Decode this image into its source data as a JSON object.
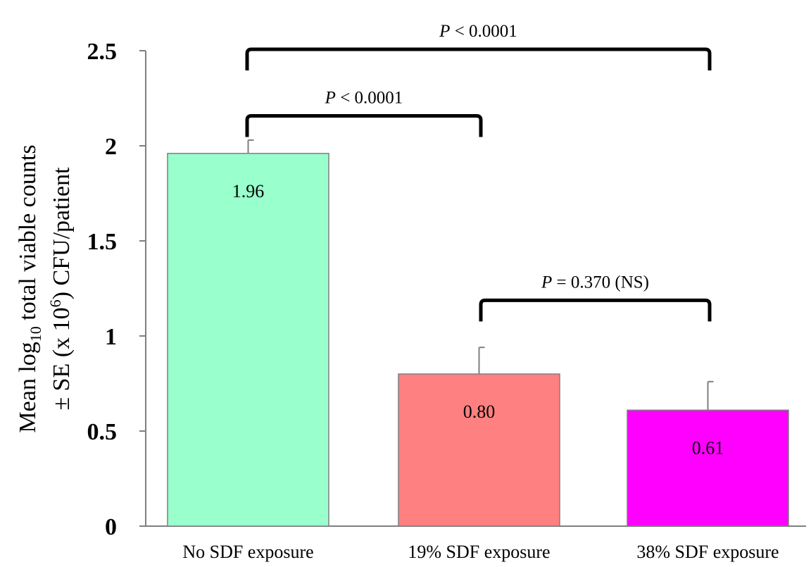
{
  "chart_data": {
    "type": "bar",
    "categories": [
      "No SDF exposure",
      "19% SDF exposure",
      "38% SDF exposure"
    ],
    "values": [
      1.96,
      0.8,
      0.61
    ],
    "value_labels": [
      "1.96",
      "0.80",
      "0.61"
    ],
    "errors": [
      0.07,
      0.14,
      0.15
    ],
    "colors": [
      "#99ffcc",
      "#ff8080",
      "#ff00ff"
    ],
    "ylabel_line1": "Mean log",
    "ylabel_sub": "10",
    "ylabel_line1_rest": " total viable counts",
    "ylabel_line2": "± SE (x 10",
    "ylabel_sup": "6",
    "ylabel_line2_rest": ") CFU/patient",
    "ylim": [
      0,
      2.5
    ],
    "yticks": [
      "0",
      "0.5",
      "1",
      "1.5",
      "2",
      "2.5"
    ],
    "ytick_values": [
      0,
      0.5,
      1,
      1.5,
      2,
      2.5
    ],
    "grid": false,
    "comparisons": [
      {
        "from": 0,
        "to": 2,
        "p_italic": "P",
        "text": " < 0.0001",
        "level": 2.5
      },
      {
        "from": 0,
        "to": 1,
        "p_italic": "P",
        "text": " < 0.0001",
        "level": 2.15
      },
      {
        "from": 1,
        "to": 2,
        "p_italic": "P",
        "text": " = 0.370 (NS)",
        "level": 1.18
      }
    ]
  }
}
